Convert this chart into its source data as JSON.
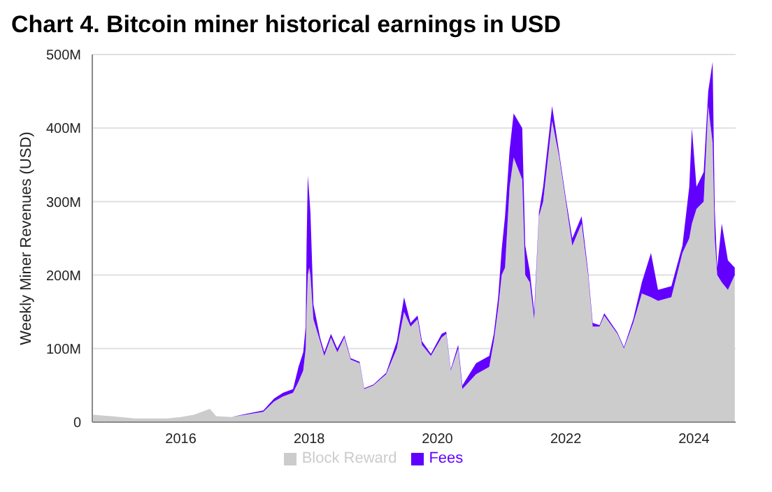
{
  "chart_data": {
    "type": "area",
    "title": "Chart 4. Bitcoin miner historical earnings in USD",
    "ylabel": "Weekly Miner Revenues (USD)",
    "stacked": true,
    "grid": "y",
    "legend": "bottom",
    "x": [
      "2014-08-20",
      "2014-12-01",
      "2015-04-15",
      "2015-10-15",
      "2016-01-01",
      "2016-03-15",
      "2016-06-15",
      "2016-07-20",
      "2016-10-15",
      "2017-01-01",
      "2017-04-15",
      "2017-06-15",
      "2017-08-05",
      "2017-10-01",
      "2017-11-01",
      "2017-11-28",
      "2017-12-12",
      "2017-12-17",
      "2017-12-24",
      "2018-01-01",
      "2018-01-08",
      "2018-01-25",
      "2018-03-04",
      "2018-03-28",
      "2018-05-05",
      "2018-06-10",
      "2018-07-20",
      "2018-08-25",
      "2018-10-15",
      "2018-11-10",
      "2019-01-01",
      "2019-03-15",
      "2019-05-15",
      "2019-06-25",
      "2019-08-01",
      "2019-09-10",
      "2019-10-05",
      "2019-11-25",
      "2020-01-25",
      "2020-02-20",
      "2020-03-17",
      "2020-04-28",
      "2020-05-22",
      "2020-08-08",
      "2020-10-22",
      "2020-11-17",
      "2020-12-12",
      "2021-01-01",
      "2021-01-20",
      "2021-02-15",
      "2021-03-10",
      "2021-04-28",
      "2021-05-15",
      "2021-06-10",
      "2021-07-05",
      "2021-08-01",
      "2021-08-25",
      "2021-10-15",
      "2021-11-25",
      "2022-01-01",
      "2022-02-07",
      "2022-04-01",
      "2022-05-08",
      "2022-06-03",
      "2022-07-12",
      "2022-08-08",
      "2022-10-22",
      "2022-11-28",
      "2023-01-20",
      "2023-03-10",
      "2023-05-01",
      "2023-06-10",
      "2023-08-25",
      "2023-10-27",
      "2023-12-05",
      "2023-12-20",
      "2024-01-15",
      "2024-02-25",
      "2024-03-22",
      "2024-04-16",
      "2024-04-28",
      "2024-05-12",
      "2024-06-07",
      "2024-07-12",
      "2024-08-20"
    ],
    "series": [
      {
        "name": "Block Reward",
        "color": "#cccccc",
        "values": [
          10,
          8,
          5,
          5,
          7,
          10,
          18,
          8,
          7,
          10,
          14,
          28,
          35,
          40,
          55,
          70,
          100,
          150,
          200,
          210,
          200,
          140,
          110,
          90,
          115,
          95,
          115,
          85,
          80,
          45,
          50,
          65,
          100,
          150,
          130,
          140,
          105,
          90,
          115,
          120,
          70,
          100,
          45,
          65,
          75,
          110,
          155,
          200,
          210,
          320,
          360,
          330,
          200,
          190,
          140,
          280,
          300,
          410,
          360,
          300,
          240,
          270,
          200,
          130,
          130,
          145,
          120,
          100,
          135,
          175,
          170,
          165,
          170,
          230,
          250,
          270,
          290,
          300,
          430,
          380,
          250,
          200,
          190,
          180,
          200
        ]
      },
      {
        "name": "Fees",
        "color": "#6200ff",
        "values": [
          0,
          0,
          0,
          0,
          0,
          0,
          0,
          0,
          0,
          1,
          2,
          4,
          5,
          5,
          20,
          25,
          30,
          90,
          135,
          100,
          85,
          20,
          5,
          5,
          5,
          5,
          3,
          2,
          2,
          1,
          1,
          2,
          10,
          20,
          5,
          5,
          5,
          3,
          5,
          3,
          2,
          5,
          5,
          15,
          15,
          10,
          15,
          35,
          70,
          50,
          60,
          70,
          40,
          15,
          10,
          5,
          20,
          20,
          5,
          5,
          10,
          10,
          5,
          5,
          2,
          3,
          2,
          2,
          5,
          15,
          60,
          15,
          15,
          10,
          70,
          130,
          30,
          40,
          20,
          110,
          40,
          10,
          80,
          40,
          10
        ]
      }
    ],
    "xlim": [
      "2014-08-15",
      "2024-08-25"
    ],
    "xticks": [
      "2016",
      "2018",
      "2020",
      "2022",
      "2024"
    ],
    "ylim": [
      0,
      500
    ],
    "yticks": [
      0,
      {
        "value": 100,
        "label": "100M"
      },
      {
        "value": 200,
        "label": "200M"
      },
      {
        "value": 300,
        "label": "300M"
      },
      {
        "value": 400,
        "label": "400M"
      },
      {
        "value": 500,
        "label": "500M"
      }
    ]
  }
}
